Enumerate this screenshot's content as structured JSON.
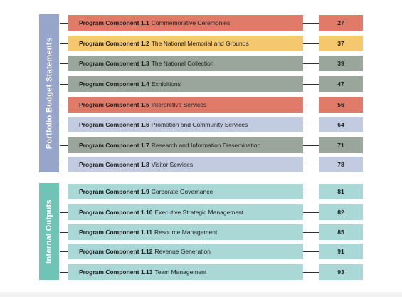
{
  "sections": [
    {
      "label": "Portfolio Budget Statements",
      "items": [
        {
          "prefix": "Program Component 1.1",
          "title": "Commemorative Ceremonies",
          "page": "27",
          "color": "#e07b6a"
        },
        {
          "prefix": "Program Component 1.2",
          "title": "The National Memorial and Grounds",
          "page": "37",
          "color": "#f5c86e"
        },
        {
          "prefix": "Program Component 1.3",
          "title": "The National Collection",
          "page": "39",
          "color": "#9aa69c"
        },
        {
          "prefix": "Program Component 1.4",
          "title": "Exhibitions",
          "page": "47",
          "color": "#9aa69c"
        },
        {
          "prefix": "Program Component 1.5",
          "title": "Interpretive Services",
          "page": "56",
          "color": "#e07b6a"
        },
        {
          "prefix": "Program Component 1.6",
          "title": "Promotion and Community Services",
          "page": "64",
          "color": "#c3cbe0"
        },
        {
          "prefix": "Program Component 1.7",
          "title": "Research and Information Dissemination",
          "page": "71",
          "color": "#9aa69c"
        },
        {
          "prefix": "Program Component 1.8",
          "title": "Visitor Services",
          "page": "78",
          "color": "#c3cbe0"
        }
      ]
    },
    {
      "label": "Internal Outputs",
      "items": [
        {
          "prefix": "Program Component 1.9",
          "title": "Corporate Governance",
          "page": "81",
          "color": "#a9d8d6"
        },
        {
          "prefix": "Program Component 1.10",
          "title": "Executive Strategic Management",
          "page": "82",
          "color": "#a9d8d6"
        },
        {
          "prefix": "Program Component 1.11",
          "title": "Resource Management",
          "page": "85",
          "color": "#a9d8d6"
        },
        {
          "prefix": "Program Component 1.12",
          "title": "Revenue Generation",
          "page": "91",
          "color": "#a9d8d6"
        },
        {
          "prefix": "Program Component 1.13",
          "title": "Team Management",
          "page": "93",
          "color": "#a9d8d6"
        }
      ]
    }
  ]
}
